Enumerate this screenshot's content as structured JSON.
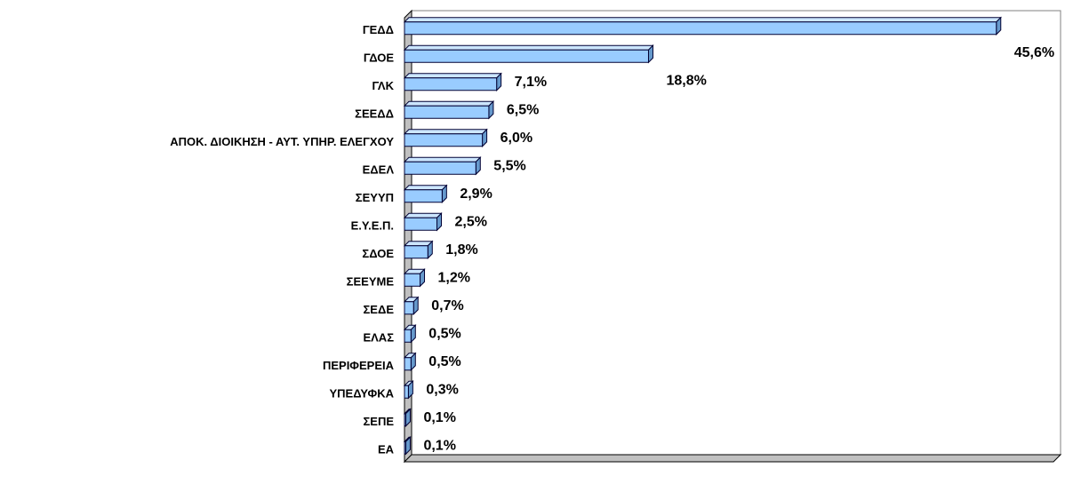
{
  "chart_data": {
    "type": "bar",
    "orientation": "horizontal",
    "three_d": true,
    "color": "#99ccff",
    "categories": [
      "ΓΕΔΔ",
      "ΓΔΟΕ",
      "ΓΛΚ",
      "ΣΕΕΔΔ",
      "ΑΠΟΚ. ΔΙΟΙΚΗΣΗ - ΑΥΤ. ΥΠΗΡ. ΕΛΕΓΧΟΥ",
      "ΕΔΕΛ",
      "ΣΕΥΥΠ",
      "Ε.Υ.Ε.Π.",
      "ΣΔΟΕ",
      "ΣΕΕΥΜΕ",
      "ΣΕΔΕ",
      "ΕΛΑΣ",
      "ΠΕΡΙΦΕΡΕΙΑ",
      "ΥΠΕΔΥΦΚΑ",
      "ΣΕΠΕ",
      "ΕΑ"
    ],
    "values": [
      45.6,
      18.8,
      7.1,
      6.5,
      6.0,
      5.5,
      2.9,
      2.5,
      1.8,
      1.2,
      0.7,
      0.5,
      0.5,
      0.3,
      0.1,
      0.1
    ],
    "value_labels": [
      "45,6%",
      "18,8%",
      "7,1%",
      "6,5%",
      "6,0%",
      "5,5%",
      "2,9%",
      "2,5%",
      "1,8%",
      "1,2%",
      "0,7%",
      "0,5%",
      "0,5%",
      "0,3%",
      "0,1%",
      "0,1%"
    ],
    "xlim": [
      0,
      50
    ]
  }
}
